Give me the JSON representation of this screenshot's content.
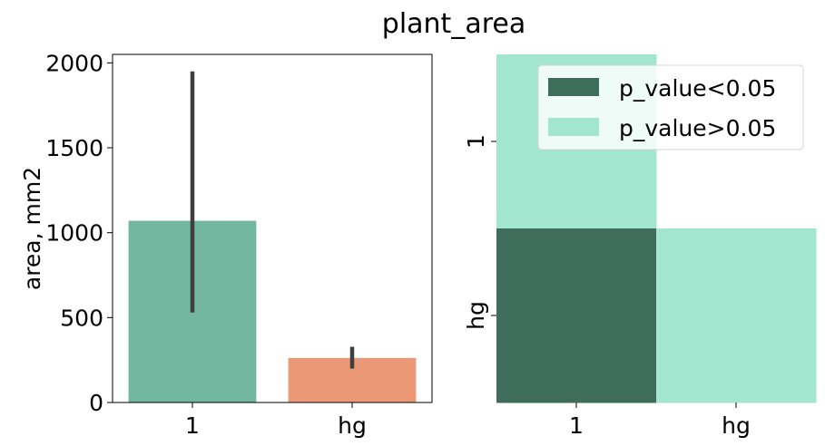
{
  "suptitle": "plant_area",
  "chart_data": [
    {
      "type": "bar",
      "categories": [
        "1",
        "hg"
      ],
      "values": [
        1070,
        262
      ],
      "error_bars": [
        [
          530,
          1950
        ],
        [
          200,
          328
        ]
      ],
      "ylabel": "area, mm2",
      "yticks": [
        0,
        500,
        1000,
        1500,
        2000
      ],
      "ylim": [
        0,
        2050
      ],
      "colors": [
        "#74b7a1",
        "#eb9876"
      ],
      "error_color": "#3f3f3f"
    },
    {
      "type": "heatmap",
      "x_categories": [
        "1",
        "hg"
      ],
      "y_categories": [
        "1",
        "hg"
      ],
      "cells": [
        {
          "row": 0,
          "col": 0,
          "class": 1
        },
        {
          "row": 1,
          "col": 0,
          "class": 0
        },
        {
          "row": 1,
          "col": 1,
          "class": 1
        }
      ],
      "legend": [
        {
          "label": "p_value<0.05",
          "color": "#3f6d5b"
        },
        {
          "label": "p_value>0.05",
          "color": "#a3e6cf"
        }
      ],
      "legend_position": "top-right"
    }
  ]
}
